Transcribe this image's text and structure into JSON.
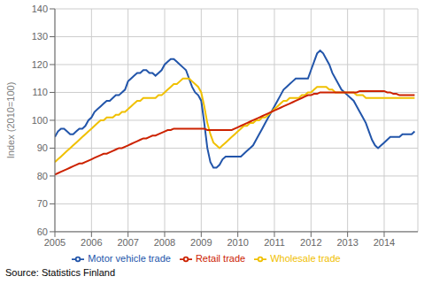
{
  "chart_data": {
    "type": "line",
    "ylabel": "Index (2010=100)",
    "annotations": [
      "Source: Statistics Finland"
    ],
    "xlim": [
      2005.0,
      2014.92
    ],
    "ylim": [
      60,
      140
    ],
    "yticks": [
      60,
      70,
      80,
      90,
      100,
      110,
      120,
      130,
      140
    ],
    "xticks": [
      2005,
      2006,
      2007,
      2008,
      2009,
      2010,
      2011,
      2012,
      2013,
      2014
    ],
    "grid": true,
    "legend": "bottom",
    "x": [
      2005.0,
      2005.083,
      2005.167,
      2005.25,
      2005.333,
      2005.417,
      2005.5,
      2005.583,
      2005.667,
      2005.75,
      2005.833,
      2005.917,
      2006.0,
      2006.083,
      2006.167,
      2006.25,
      2006.333,
      2006.417,
      2006.5,
      2006.583,
      2006.667,
      2006.75,
      2006.833,
      2006.917,
      2007.0,
      2007.083,
      2007.167,
      2007.25,
      2007.333,
      2007.417,
      2007.5,
      2007.583,
      2007.667,
      2007.75,
      2007.833,
      2007.917,
      2008.0,
      2008.083,
      2008.167,
      2008.25,
      2008.333,
      2008.417,
      2008.5,
      2008.583,
      2008.667,
      2008.75,
      2008.833,
      2008.917,
      2009.0,
      2009.083,
      2009.167,
      2009.25,
      2009.333,
      2009.417,
      2009.5,
      2009.583,
      2009.667,
      2009.75,
      2009.833,
      2009.917,
      2010.0,
      2010.083,
      2010.167,
      2010.25,
      2010.333,
      2010.417,
      2010.5,
      2010.583,
      2010.667,
      2010.75,
      2010.833,
      2010.917,
      2011.0,
      2011.083,
      2011.167,
      2011.25,
      2011.333,
      2011.417,
      2011.5,
      2011.583,
      2011.667,
      2011.75,
      2011.833,
      2011.917,
      2012.0,
      2012.083,
      2012.167,
      2012.25,
      2012.333,
      2012.417,
      2012.5,
      2012.583,
      2012.667,
      2012.75,
      2012.833,
      2012.917,
      2013.0,
      2013.083,
      2013.167,
      2013.25,
      2013.333,
      2013.417,
      2013.5,
      2013.583,
      2013.667,
      2013.75,
      2013.833,
      2013.917,
      2014.0,
      2014.083,
      2014.167,
      2014.25,
      2014.333,
      2014.417,
      2014.5,
      2014.583,
      2014.667,
      2014.75,
      2014.833
    ],
    "series": [
      {
        "name": "Motor vehicle trade",
        "color": "#2255aa",
        "values": [
          94,
          96,
          97,
          97,
          96,
          95,
          95,
          96,
          97,
          97,
          98,
          100,
          101,
          103,
          104,
          105,
          106,
          107,
          107,
          108,
          109,
          109,
          110,
          111,
          114,
          115,
          116,
          117,
          117,
          118,
          118,
          117,
          117,
          116,
          117,
          118,
          120,
          121,
          122,
          122,
          121,
          120,
          119,
          118,
          115,
          112,
          110,
          109,
          107,
          99,
          90,
          85,
          83,
          83,
          84,
          86,
          87,
          87,
          87,
          87,
          87,
          87,
          88,
          89,
          90,
          91,
          93,
          95,
          97,
          99,
          101,
          103,
          105,
          107,
          109,
          111,
          112,
          113,
          114,
          115,
          115,
          115,
          115,
          115,
          118,
          121,
          124,
          125,
          124,
          122,
          120,
          117,
          115,
          113,
          111,
          110,
          109,
          108,
          107,
          105,
          103,
          101,
          99,
          96,
          93,
          91,
          90,
          91,
          92,
          93,
          94,
          94,
          94,
          94,
          95,
          95,
          95,
          95,
          96
        ]
      },
      {
        "name": "Wholesale trade",
        "color": "#f0c000",
        "values": [
          85,
          86,
          87,
          88,
          89,
          90,
          91,
          92,
          93,
          94,
          95,
          96,
          97,
          98,
          99,
          100,
          100,
          101,
          101,
          101,
          102,
          102,
          103,
          103,
          104,
          105,
          106,
          107,
          107,
          108,
          108,
          108,
          108,
          108,
          109,
          109,
          110,
          111,
          112,
          113,
          113,
          114,
          115,
          115,
          115,
          114,
          113,
          112,
          110,
          105,
          99,
          95,
          92,
          91,
          90,
          91,
          92,
          93,
          94,
          95,
          96,
          97,
          98,
          98,
          99,
          99,
          100,
          100,
          101,
          101,
          102,
          103,
          104,
          105,
          106,
          107,
          107,
          108,
          108,
          108,
          108,
          109,
          109,
          110,
          110,
          111,
          112,
          112,
          112,
          112,
          111,
          111,
          110,
          110,
          110,
          110,
          110,
          110,
          110,
          109,
          109,
          109,
          108,
          108,
          108,
          108,
          108,
          108,
          108,
          108,
          108,
          108,
          108,
          108,
          108,
          108,
          108,
          108,
          108
        ]
      },
      {
        "name": "Retail trade",
        "color": "#cc2200",
        "values": [
          80.5,
          81,
          81.5,
          82,
          82.5,
          83,
          83.5,
          84,
          84.5,
          84.5,
          85,
          85.5,
          86,
          86.5,
          87,
          87.5,
          88,
          88,
          88.5,
          89,
          89.5,
          90,
          90,
          90.5,
          91,
          91.5,
          92,
          92.5,
          93,
          93.5,
          93.5,
          94,
          94.5,
          94.5,
          95,
          95.5,
          96,
          96.5,
          96.5,
          97,
          97,
          97,
          97,
          97,
          97,
          97,
          97,
          97,
          97,
          97,
          96.5,
          96.5,
          96.5,
          96.5,
          96.5,
          96.5,
          96.5,
          96.5,
          96.5,
          97,
          97.5,
          98,
          98.5,
          99,
          99.5,
          100,
          100.5,
          101,
          101.5,
          102,
          102.5,
          103,
          103.5,
          104,
          104.5,
          105,
          105.5,
          106,
          106.5,
          107,
          107.5,
          108,
          108.5,
          109,
          109,
          109.5,
          109.5,
          110,
          110,
          110,
          110,
          110,
          110,
          110,
          110,
          110,
          110,
          110,
          110,
          110,
          110.5,
          110.5,
          110.5,
          110.5,
          110.5,
          110.5,
          110.5,
          110.5,
          110.5,
          110,
          110,
          109.5,
          109.5,
          109,
          109,
          109,
          109,
          109,
          109
        ]
      }
    ]
  }
}
